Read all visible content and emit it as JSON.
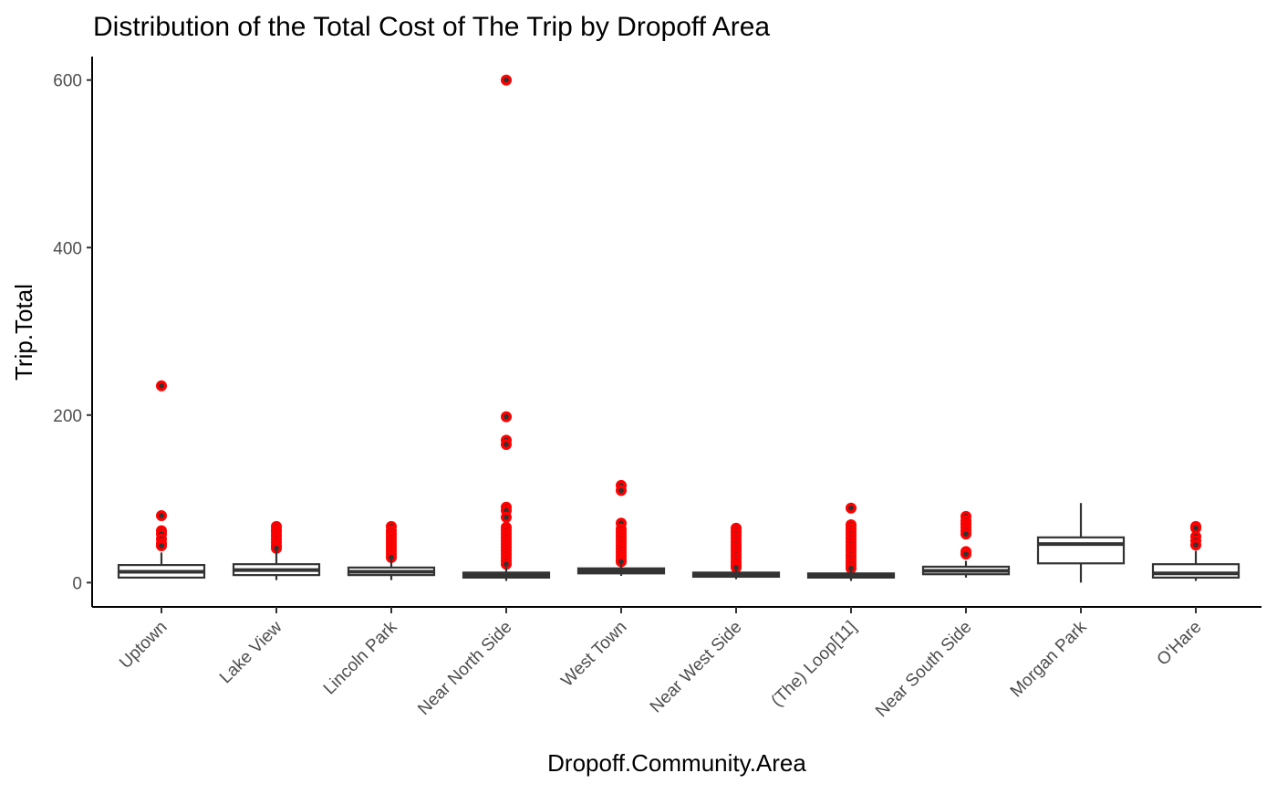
{
  "chart_data": {
    "type": "box",
    "title": "Distribution of the Total Cost of The Trip by Dropoff Area",
    "xlabel": "Dropoff.Community.Area",
    "ylabel": "Trip.Total",
    "ylim": [
      -29,
      628
    ],
    "yticks": [
      0,
      200,
      400,
      600
    ],
    "grid": false,
    "legend": "none",
    "colors": {
      "outlier": "#ff0000",
      "box": "#333333",
      "axis": "#000000"
    },
    "categories": [
      "Uptown",
      "Lake View",
      "Lincoln Park",
      "Near North Side",
      "West Town",
      "Near West Side",
      "(The)  Loop[11]",
      "Near South Side",
      "Morgan Park",
      "O'Hare"
    ],
    "boxes": [
      {
        "min": 5,
        "q1": 6,
        "median": 13,
        "q3": 21,
        "max": 36,
        "outliers": [
          235,
          80,
          62,
          58,
          52,
          47,
          44
        ]
      },
      {
        "min": 3,
        "q1": 9,
        "median": 15,
        "q3": 22,
        "max": 38,
        "outliers": [
          67,
          63,
          60,
          56,
          52,
          48,
          44,
          41
        ]
      },
      {
        "min": 3,
        "q1": 9,
        "median": 13,
        "q3": 18,
        "max": 27,
        "outliers": [
          67,
          62,
          58,
          54,
          50,
          46,
          42,
          38,
          34,
          30
        ]
      },
      {
        "min": 2,
        "q1": 6,
        "median": 9,
        "q3": 12,
        "max": 18,
        "outliers": [
          600,
          198,
          170,
          165,
          90,
          86,
          78,
          66,
          62,
          58,
          54,
          50,
          46,
          42,
          38,
          34,
          30,
          26,
          22
        ]
      },
      {
        "min": 8,
        "q1": 11,
        "median": 14,
        "q3": 17,
        "max": 22,
        "outliers": [
          116,
          110,
          71,
          64,
          60,
          56,
          52,
          48,
          44,
          40,
          36,
          32,
          28,
          25
        ]
      },
      {
        "min": 4,
        "q1": 7,
        "median": 10,
        "q3": 12,
        "max": 15,
        "outliers": [
          65,
          61,
          57,
          53,
          49,
          45,
          41,
          37,
          33,
          29,
          25,
          21,
          18
        ]
      },
      {
        "min": 2,
        "q1": 6,
        "median": 9,
        "q3": 11,
        "max": 14,
        "outliers": [
          89,
          69,
          65,
          61,
          57,
          53,
          49,
          45,
          41,
          37,
          33,
          29,
          25,
          21,
          17
        ]
      },
      {
        "min": 6,
        "q1": 10,
        "median": 14,
        "q3": 19,
        "max": 26,
        "outliers": [
          79,
          74,
          70,
          66,
          62,
          58,
          37,
          34
        ]
      },
      {
        "min": 0,
        "q1": 23,
        "median": 46,
        "q3": 54,
        "max": 95,
        "outliers": []
      },
      {
        "min": 2,
        "q1": 6,
        "median": 11,
        "q3": 22,
        "max": 38,
        "outliers": [
          67,
          65,
          55,
          50,
          45
        ]
      }
    ]
  }
}
